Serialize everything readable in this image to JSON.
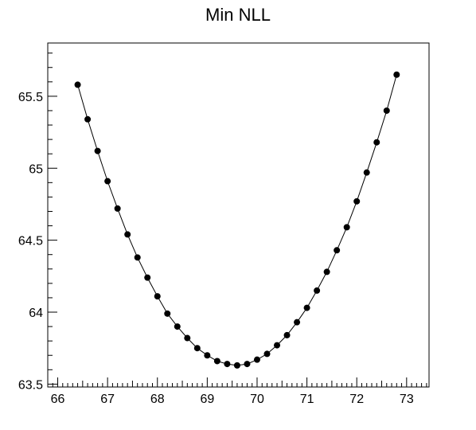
{
  "chart_data": {
    "type": "line",
    "title": "Min NLL",
    "xlabel": "",
    "ylabel": "",
    "xlim": [
      65.8,
      73.45
    ],
    "ylim": [
      63.48,
      65.87
    ],
    "xticks": [
      66,
      67,
      68,
      69,
      70,
      71,
      72,
      73
    ],
    "yticks": [
      63.5,
      64,
      64.5,
      65,
      65.5
    ],
    "xtick_labels": [
      "66",
      "67",
      "68",
      "69",
      "70",
      "71",
      "72",
      "73"
    ],
    "ytick_labels": [
      "63.5",
      "64",
      "64.5",
      "65",
      "65.5"
    ],
    "grid": false,
    "series": [
      {
        "marker": "circle",
        "color": "#000000",
        "x": [
          66.4,
          66.6,
          66.8,
          67.0,
          67.2,
          67.4,
          67.6,
          67.8,
          68.0,
          68.2,
          68.4,
          68.6,
          68.8,
          69.0,
          69.2,
          69.4,
          69.6,
          69.8,
          70.0,
          70.2,
          70.4,
          70.6,
          70.8,
          71.0,
          71.2,
          71.4,
          71.6,
          71.8,
          72.0,
          72.2,
          72.4,
          72.6,
          72.8
        ],
        "y": [
          65.58,
          65.34,
          65.12,
          64.91,
          64.72,
          64.54,
          64.38,
          64.24,
          64.11,
          63.99,
          63.9,
          63.82,
          63.75,
          63.7,
          63.66,
          63.64,
          63.63,
          63.64,
          63.67,
          63.71,
          63.77,
          63.84,
          63.93,
          64.03,
          64.15,
          64.28,
          64.43,
          64.59,
          64.77,
          64.97,
          65.18,
          65.4,
          65.65
        ]
      }
    ]
  }
}
